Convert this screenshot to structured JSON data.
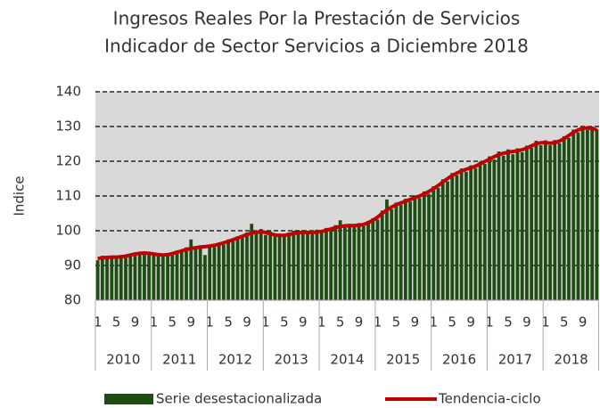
{
  "chart_data": {
    "type": "bar",
    "title": "Ingresos Reales Por la Prestación de Servicios",
    "subtitle": "Indicador de Sector Servicios a Diciembre 2018",
    "y_label": "Indice",
    "years": [
      "2010",
      "2011",
      "2012",
      "2013",
      "2014",
      "2015",
      "2016",
      "2017",
      "2018"
    ],
    "categories": [
      "1",
      null,
      null,
      null,
      "5",
      null,
      null,
      null,
      "9",
      null,
      null,
      null,
      "1",
      null,
      null,
      null,
      "5",
      null,
      null,
      null,
      "9",
      null,
      null,
      null,
      "1",
      null,
      null,
      null,
      "5",
      null,
      null,
      null,
      "9",
      null,
      null,
      null,
      "1",
      null,
      null,
      null,
      "5",
      null,
      null,
      null,
      "9",
      null,
      null,
      null,
      "1",
      null,
      null,
      null,
      "5",
      null,
      null,
      null,
      "9",
      null,
      null,
      null,
      "1",
      null,
      null,
      null,
      "5",
      null,
      null,
      null,
      "9",
      null,
      null,
      null,
      "1",
      null,
      null,
      null,
      "5",
      null,
      null,
      null,
      "9",
      null,
      null,
      null,
      "1",
      null,
      null,
      null,
      "5",
      null,
      null,
      null,
      "9",
      null,
      null,
      null,
      "1",
      null,
      null,
      null,
      "5",
      null,
      null,
      null,
      "9",
      null,
      null,
      null
    ],
    "series": [
      {
        "name": "Serie desestacionalizada",
        "type": "bar",
        "color": "#1e4d14",
        "values": [
          91.5,
          92.8,
          92.0,
          92.6,
          92.1,
          93.0,
          92.4,
          93.4,
          93.0,
          93.9,
          93.2,
          93.8,
          92.9,
          93.5,
          92.7,
          93.6,
          93.0,
          94.3,
          93.9,
          95.2,
          97.5,
          95.0,
          95.8,
          93.0,
          95.9,
          95.3,
          96.6,
          96.0,
          97.5,
          97.0,
          98.4,
          98.0,
          99.5,
          102.0,
          99.2,
          100.5,
          98.8,
          99.8,
          98.3,
          99.2,
          98.2,
          99.5,
          100.0,
          99.0,
          100.2,
          99.1,
          99.9,
          100.3,
          99.5,
          100.8,
          100.0,
          101.6,
          103.0,
          101.0,
          102.0,
          101.1,
          102.2,
          101.3,
          102.8,
          103.6,
          103.2,
          105.8,
          109.0,
          106.2,
          108.1,
          107.5,
          109.2,
          108.4,
          110.2,
          109.4,
          111.3,
          110.6,
          112.8,
          112.3,
          114.8,
          114.2,
          116.6,
          116.0,
          117.9,
          117.0,
          118.8,
          118.0,
          119.9,
          119.2,
          121.4,
          120.5,
          122.8,
          121.6,
          123.4,
          122.0,
          123.7,
          122.6,
          124.5,
          123.9,
          125.9,
          124.6,
          126.0,
          124.6,
          126.1,
          125.2,
          127.2,
          126.7,
          129.1,
          128.3,
          130.2,
          129.0,
          130.0,
          129.2
        ]
      },
      {
        "name": "Tendencia-ciclo",
        "type": "line",
        "color": "#c00000",
        "values": [
          92.0,
          92.2,
          92.3,
          92.4,
          92.4,
          92.5,
          92.7,
          93.0,
          93.3,
          93.5,
          93.6,
          93.5,
          93.3,
          93.1,
          93.0,
          93.1,
          93.4,
          93.8,
          94.2,
          94.6,
          94.9,
          95.1,
          95.3,
          95.4,
          95.6,
          95.8,
          96.1,
          96.5,
          96.9,
          97.4,
          97.9,
          98.4,
          98.9,
          99.3,
          99.6,
          99.7,
          99.5,
          99.1,
          98.8,
          98.6,
          98.7,
          98.9,
          99.2,
          99.4,
          99.5,
          99.5,
          99.5,
          99.6,
          99.8,
          100.1,
          100.5,
          100.9,
          101.2,
          101.4,
          101.5,
          101.5,
          101.6,
          101.8,
          102.3,
          103.0,
          103.9,
          105.0,
          106.0,
          106.8,
          107.5,
          108.0,
          108.5,
          109.0,
          109.5,
          110.0,
          110.6,
          111.3,
          112.1,
          113.0,
          114.0,
          115.0,
          115.9,
          116.6,
          117.2,
          117.7,
          118.1,
          118.6,
          119.2,
          119.9,
          120.6,
          121.3,
          121.9,
          122.3,
          122.6,
          122.8,
          123.0,
          123.3,
          123.8,
          124.4,
          125.0,
          125.3,
          125.3,
          125.2,
          125.3,
          125.8,
          126.5,
          127.4,
          128.3,
          129.0,
          129.5,
          129.6,
          129.4,
          129.0
        ]
      }
    ],
    "ylim": [
      80,
      140
    ],
    "yticks": [
      80,
      90,
      100,
      110,
      120,
      130,
      140
    ],
    "grid": true,
    "legend": "bottom",
    "background": "#d9d9d9"
  }
}
